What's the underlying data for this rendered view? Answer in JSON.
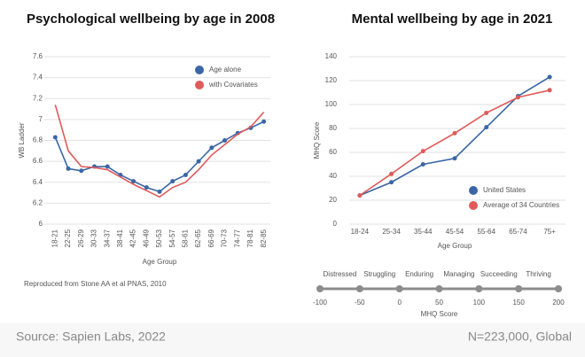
{
  "chart_data": [
    {
      "type": "line",
      "title": "Psychological wellbeing by age in 2008",
      "ylabel": "WB Ladder",
      "xlabel": "Age Group",
      "note": "Reproduced from Stone AA et al PNAS, 2010",
      "categories": [
        "18-21",
        "22-25",
        "26-29",
        "30-33",
        "34-37",
        "38-41",
        "42-45",
        "46-49",
        "50-53",
        "54-57",
        "58-61",
        "62-65",
        "66-69",
        "70-73",
        "74-77",
        "78-81",
        "82-85"
      ],
      "series": [
        {
          "name": "Age alone",
          "color": "#3a66a6",
          "markers": true,
          "values": [
            6.83,
            6.53,
            6.51,
            6.55,
            6.55,
            6.47,
            6.41,
            6.35,
            6.31,
            6.41,
            6.47,
            6.6,
            6.73,
            6.8,
            6.87,
            6.92,
            6.98
          ]
        },
        {
          "name": "with Covariates",
          "color": "#e05a5a",
          "markers": false,
          "values": [
            7.14,
            6.7,
            6.55,
            6.54,
            6.52,
            6.45,
            6.38,
            6.32,
            6.26,
            6.35,
            6.4,
            6.52,
            6.66,
            6.76,
            6.86,
            6.93,
            7.07
          ]
        }
      ],
      "ylim": [
        6,
        7.6
      ],
      "yticks": [
        6,
        6.2,
        6.4,
        6.6,
        6.8,
        7,
        7.2,
        7.4,
        7.6
      ],
      "grid": true,
      "legend": "top-right",
      "rotate_x_labels": true
    },
    {
      "type": "line",
      "title": "Mental wellbeing by age in 2021",
      "ylabel": "MHQ Score",
      "xlabel": "Age Group",
      "categories": [
        "18-24",
        "25-34",
        "35-44",
        "45-54",
        "55-64",
        "65-74",
        "75+"
      ],
      "series": [
        {
          "name": "United States",
          "color": "#3a66a6",
          "markers": true,
          "values": [
            24,
            35,
            50,
            55,
            81,
            107,
            123
          ]
        },
        {
          "name": "Average of 34 Countries",
          "color": "#e05a5a",
          "markers": true,
          "values": [
            24,
            42,
            61,
            76,
            93,
            106,
            112
          ]
        }
      ],
      "ylim": [
        0,
        140
      ],
      "yticks": [
        0,
        20,
        40,
        60,
        80,
        100,
        120,
        140
      ],
      "grid": true,
      "legend": "bottom-right",
      "rotate_x_labels": false
    },
    {
      "type": "scale",
      "xlabel": "MHQ Score",
      "categories": [
        "Distressed",
        "Struggling",
        "Enduring",
        "Managing",
        "Succeeding",
        "Thriving"
      ],
      "xlim": [
        -100,
        200
      ],
      "xticks": [
        -100,
        -50,
        0,
        50,
        100,
        150,
        200
      ],
      "color": "#8c8c8c"
    }
  ],
  "footer": {
    "source": "Source: Sapien Labs, 2022",
    "sample": "N=223,000, Global"
  }
}
